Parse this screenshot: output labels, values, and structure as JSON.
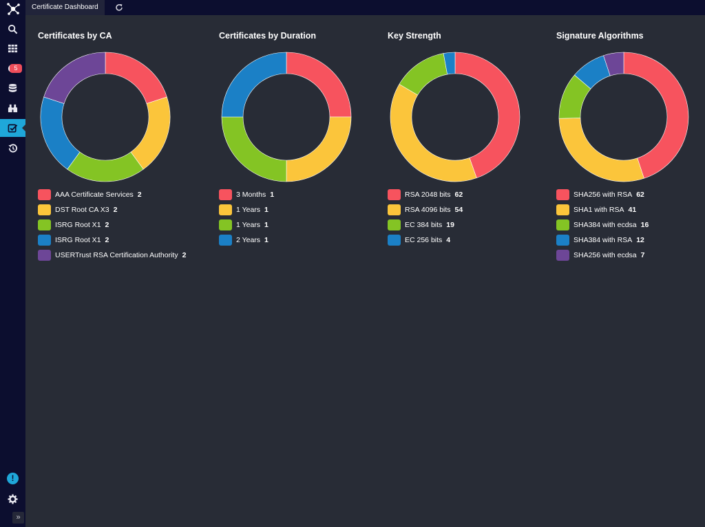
{
  "app": {
    "tab_title": "Certificate Dashboard"
  },
  "sidebar": {
    "items": [
      {
        "icon": "search-icon"
      },
      {
        "icon": "grid-icon"
      },
      {
        "icon": "alert-icon",
        "badge": "5"
      },
      {
        "icon": "database-icon"
      },
      {
        "icon": "binoculars-icon"
      },
      {
        "icon": "certificate-check-icon",
        "active": true
      },
      {
        "icon": "history-icon"
      }
    ],
    "info_label": "!",
    "expand_label": "»"
  },
  "colors": {
    "red": "#f7535e",
    "yellow": "#fbc53b",
    "green": "#84c424",
    "blue": "#1b80c6",
    "purple": "#6d4697"
  },
  "panels": [
    {
      "title": "Certificates by CA",
      "chart_data": {
        "type": "pie",
        "categories": [
          "AAA Certificate Services",
          "DST Root CA X3",
          "ISRG Root X1",
          "ISRG Root X1",
          "USERTrust RSA Certification Authority"
        ],
        "values": [
          2,
          2,
          2,
          2,
          2
        ],
        "colors": [
          "#f7535e",
          "#fbc53b",
          "#84c424",
          "#1b80c6",
          "#6d4697"
        ]
      },
      "legend": [
        {
          "label": "AAA Certificate Services",
          "value": "2"
        },
        {
          "label": "DST Root CA X3",
          "value": "2"
        },
        {
          "label": "ISRG Root X1",
          "value": "2"
        },
        {
          "label": "ISRG Root X1",
          "value": "2"
        },
        {
          "label": "USERTrust RSA Certification Authority",
          "value": "2"
        }
      ]
    },
    {
      "title": "Certificates by Duration",
      "chart_data": {
        "type": "pie",
        "categories": [
          "3 Months",
          "1 Years",
          "1 Years",
          "2 Years"
        ],
        "values": [
          1,
          1,
          1,
          1
        ],
        "colors": [
          "#f7535e",
          "#fbc53b",
          "#84c424",
          "#1b80c6"
        ]
      },
      "legend": [
        {
          "label": "3 Months",
          "value": "1"
        },
        {
          "label": "1 Years",
          "value": "1"
        },
        {
          "label": "1 Years",
          "value": "1"
        },
        {
          "label": "2 Years",
          "value": "1"
        }
      ]
    },
    {
      "title": "Key Strength",
      "chart_data": {
        "type": "pie",
        "categories": [
          "RSA 2048 bits",
          "RSA 4096 bits",
          "EC 384 bits",
          "EC 256 bits"
        ],
        "values": [
          62,
          54,
          19,
          4
        ],
        "colors": [
          "#f7535e",
          "#fbc53b",
          "#84c424",
          "#1b80c6"
        ]
      },
      "legend": [
        {
          "label": "RSA 2048 bits",
          "value": "62"
        },
        {
          "label": "RSA 4096 bits",
          "value": "54"
        },
        {
          "label": "EC 384 bits",
          "value": "19"
        },
        {
          "label": "EC 256 bits",
          "value": "4"
        }
      ]
    },
    {
      "title": "Signature Algorithms",
      "chart_data": {
        "type": "pie",
        "categories": [
          "SHA256 with RSA",
          "SHA1 with RSA",
          "SHA384 with ecdsa",
          "SHA384 with RSA",
          "SHA256 with ecdsa"
        ],
        "values": [
          62,
          41,
          16,
          12,
          7
        ],
        "colors": [
          "#f7535e",
          "#fbc53b",
          "#84c424",
          "#1b80c6",
          "#6d4697"
        ]
      },
      "legend": [
        {
          "label": "SHA256 with RSA",
          "value": "62"
        },
        {
          "label": "SHA1 with RSA",
          "value": "41"
        },
        {
          "label": "SHA384 with ecdsa",
          "value": "16"
        },
        {
          "label": "SHA384 with RSA",
          "value": "12"
        },
        {
          "label": "SHA256 with ecdsa",
          "value": "7"
        }
      ]
    }
  ]
}
